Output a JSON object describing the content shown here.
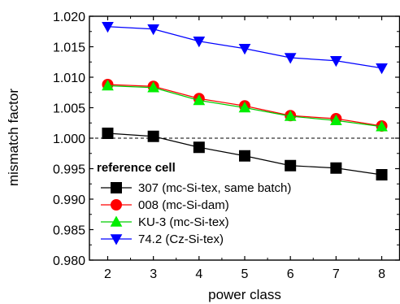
{
  "chart_data": {
    "type": "line",
    "xlabel": "power class",
    "ylabel": "mismatch factor",
    "xlim": [
      1.6,
      8.4
    ],
    "ylim": [
      0.98,
      1.02
    ],
    "xticks": [
      "2",
      "3",
      "4",
      "5",
      "6",
      "7",
      "8"
    ],
    "yticks": [
      "0.980",
      "0.985",
      "0.990",
      "0.995",
      "1.000",
      "1.005",
      "1.010",
      "1.015",
      "1.020"
    ],
    "reference_line": 1.0,
    "grid": false,
    "legend": {
      "title": "reference cell",
      "placement": "bottom-left"
    },
    "x": [
      2,
      3,
      4,
      5,
      6,
      7,
      8
    ],
    "series": [
      {
        "name": "307 (mc-Si-tex, same batch)",
        "values": [
          1.0008,
          1.0003,
          0.9985,
          0.9971,
          0.9955,
          0.9951,
          0.994
        ],
        "line_color": "#000000",
        "marker": "square",
        "marker_color": "#000000"
      },
      {
        "name": "008 (mc-Si-dam)",
        "values": [
          1.0088,
          1.0085,
          1.0065,
          1.0053,
          1.0037,
          1.0032,
          1.002
        ],
        "line_color": "#ff0000",
        "marker": "circle",
        "marker_color": "#ff0000"
      },
      {
        "name": "KU-3 (mc-Si-tex)",
        "values": [
          1.0086,
          1.0083,
          1.0062,
          1.005,
          1.0036,
          1.0029,
          1.0019
        ],
        "line_color": "#00cc00",
        "marker": "triangle-up",
        "marker_color": "#00ee00"
      },
      {
        "name": "74.2 (Cz-Si-tex)",
        "values": [
          1.0183,
          1.0179,
          1.0159,
          1.0147,
          1.0132,
          1.0127,
          1.0115
        ],
        "line_color": "#0000ff",
        "marker": "triangle-down",
        "marker_color": "#0000ff"
      }
    ]
  }
}
